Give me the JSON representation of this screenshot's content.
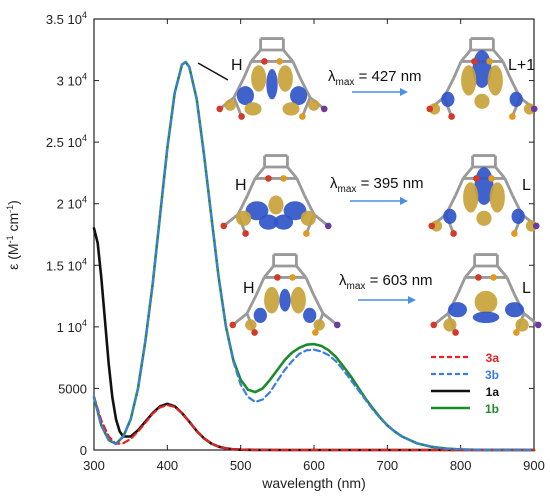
{
  "chart_data": {
    "type": "line",
    "xlabel": "wavelength (nm)",
    "ylabel_main": "ε (M",
    "ylabel_sup1": "-1",
    "ylabel_mid": " cm",
    "ylabel_sup2": "-1",
    "ylabel_end": ")",
    "xlim": [
      300,
      900
    ],
    "ylim": [
      0,
      35000
    ],
    "x_ticks": [
      {
        "value": 300,
        "label": "300"
      },
      {
        "value": 400,
        "label": "400"
      },
      {
        "value": 500,
        "label": "500"
      },
      {
        "value": 600,
        "label": "600"
      },
      {
        "value": 700,
        "label": "700"
      },
      {
        "value": 800,
        "label": "800"
      },
      {
        "value": 900,
        "label": "900"
      }
    ],
    "y_ticks": [
      {
        "value": 0,
        "base": "0",
        "exp": ""
      },
      {
        "value": 5000,
        "base": "5000",
        "exp": ""
      },
      {
        "value": 10000,
        "base": "1 10",
        "exp": "4"
      },
      {
        "value": 15000,
        "base": "1.5 10",
        "exp": "4"
      },
      {
        "value": 20000,
        "base": "2 10",
        "exp": "4"
      },
      {
        "value": 25000,
        "base": "2.5 10",
        "exp": "4"
      },
      {
        "value": 30000,
        "base": "3 10",
        "exp": "4"
      },
      {
        "value": 35000,
        "base": "3.5 10",
        "exp": "4"
      }
    ],
    "legend_position": "bottom-right",
    "series": [
      {
        "name": "3a",
        "color": "#e8201f",
        "dash": "dashed",
        "points": [
          [
            300,
            4300
          ],
          [
            310,
            2400
          ],
          [
            320,
            1100
          ],
          [
            330,
            500
          ],
          [
            340,
            550
          ],
          [
            350,
            900
          ],
          [
            360,
            1500
          ],
          [
            370,
            2200
          ],
          [
            380,
            2950
          ],
          [
            390,
            3450
          ],
          [
            400,
            3650
          ],
          [
            410,
            3500
          ],
          [
            420,
            3000
          ],
          [
            430,
            2300
          ],
          [
            440,
            1550
          ],
          [
            450,
            950
          ],
          [
            460,
            520
          ],
          [
            470,
            270
          ],
          [
            480,
            130
          ],
          [
            490,
            60
          ],
          [
            500,
            25
          ],
          [
            520,
            5
          ],
          [
            560,
            0
          ],
          [
            900,
            0
          ]
        ]
      },
      {
        "name": "3b",
        "color": "#3c7de0",
        "dash": "dashed",
        "points": [
          [
            300,
            4300
          ],
          [
            310,
            2000
          ],
          [
            320,
            800
          ],
          [
            330,
            500
          ],
          [
            340,
            1100
          ],
          [
            350,
            2500
          ],
          [
            360,
            5000
          ],
          [
            370,
            8800
          ],
          [
            380,
            13500
          ],
          [
            390,
            19000
          ],
          [
            400,
            24500
          ],
          [
            410,
            29000
          ],
          [
            420,
            31300
          ],
          [
            425,
            31500
          ],
          [
            430,
            31100
          ],
          [
            440,
            28500
          ],
          [
            450,
            24000
          ],
          [
            460,
            19000
          ],
          [
            470,
            14000
          ],
          [
            480,
            10000
          ],
          [
            490,
            7200
          ],
          [
            500,
            5300
          ],
          [
            510,
            4300
          ],
          [
            520,
            3900
          ],
          [
            530,
            4100
          ],
          [
            540,
            4700
          ],
          [
            550,
            5600
          ],
          [
            560,
            6500
          ],
          [
            570,
            7200
          ],
          [
            580,
            7800
          ],
          [
            590,
            8100
          ],
          [
            600,
            8150
          ],
          [
            610,
            8000
          ],
          [
            620,
            7700
          ],
          [
            630,
            7200
          ],
          [
            640,
            6500
          ],
          [
            650,
            5700
          ],
          [
            660,
            4900
          ],
          [
            670,
            4100
          ],
          [
            680,
            3300
          ],
          [
            690,
            2600
          ],
          [
            700,
            2000
          ],
          [
            710,
            1500
          ],
          [
            720,
            1100
          ],
          [
            740,
            550
          ],
          [
            760,
            260
          ],
          [
            780,
            110
          ],
          [
            800,
            50
          ],
          [
            820,
            20
          ],
          [
            850,
            5
          ],
          [
            900,
            0
          ]
        ]
      },
      {
        "name": "1a",
        "color": "#111111",
        "dash": "solid",
        "points": [
          [
            300,
            18000
          ],
          [
            305,
            16800
          ],
          [
            310,
            14000
          ],
          [
            315,
            10500
          ],
          [
            320,
            7000
          ],
          [
            325,
            4300
          ],
          [
            330,
            2500
          ],
          [
            335,
            1500
          ],
          [
            340,
            1100
          ],
          [
            350,
            1100
          ],
          [
            360,
            1600
          ],
          [
            370,
            2300
          ],
          [
            380,
            3000
          ],
          [
            390,
            3550
          ],
          [
            400,
            3750
          ],
          [
            410,
            3550
          ],
          [
            420,
            3000
          ],
          [
            430,
            2300
          ],
          [
            440,
            1550
          ],
          [
            450,
            950
          ],
          [
            460,
            520
          ],
          [
            470,
            270
          ],
          [
            480,
            130
          ],
          [
            490,
            60
          ],
          [
            500,
            25
          ],
          [
            520,
            5
          ],
          [
            560,
            0
          ],
          [
            900,
            0
          ]
        ]
      },
      {
        "name": "1b",
        "color": "#1e8a2c",
        "dash": "solid",
        "points": [
          [
            300,
            4300
          ],
          [
            310,
            2000
          ],
          [
            320,
            800
          ],
          [
            330,
            500
          ],
          [
            340,
            1100
          ],
          [
            350,
            2500
          ],
          [
            360,
            5000
          ],
          [
            370,
            8800
          ],
          [
            380,
            13500
          ],
          [
            390,
            19000
          ],
          [
            400,
            24500
          ],
          [
            410,
            29000
          ],
          [
            420,
            31300
          ],
          [
            425,
            31500
          ],
          [
            430,
            31100
          ],
          [
            440,
            28500
          ],
          [
            450,
            24000
          ],
          [
            460,
            19000
          ],
          [
            470,
            14000
          ],
          [
            480,
            10000
          ],
          [
            490,
            7300
          ],
          [
            500,
            5700
          ],
          [
            510,
            4900
          ],
          [
            520,
            4700
          ],
          [
            530,
            5000
          ],
          [
            540,
            5700
          ],
          [
            550,
            6500
          ],
          [
            560,
            7300
          ],
          [
            570,
            7900
          ],
          [
            580,
            8300
          ],
          [
            590,
            8550
          ],
          [
            600,
            8600
          ],
          [
            610,
            8450
          ],
          [
            620,
            8100
          ],
          [
            630,
            7550
          ],
          [
            640,
            6800
          ],
          [
            650,
            6000
          ],
          [
            660,
            5100
          ],
          [
            670,
            4200
          ],
          [
            680,
            3400
          ],
          [
            690,
            2650
          ],
          [
            700,
            2000
          ],
          [
            710,
            1500
          ],
          [
            720,
            1100
          ],
          [
            740,
            550
          ],
          [
            760,
            260
          ],
          [
            780,
            110
          ],
          [
            800,
            50
          ],
          [
            820,
            20
          ],
          [
            850,
            5
          ],
          [
            900,
            0
          ]
        ]
      }
    ]
  },
  "mo_panels": [
    {
      "from_label": "H",
      "lambda_prefix": "λ",
      "lambda_sub": "max",
      "lambda_value": " = 427 nm",
      "to_label": "L+1"
    },
    {
      "from_label": "H",
      "lambda_prefix": "λ",
      "lambda_sub": "max",
      "lambda_value": " = 395 nm",
      "to_label": "L"
    },
    {
      "from_label": "H",
      "lambda_prefix": "λ",
      "lambda_sub": "max",
      "lambda_value": " = 603 nm",
      "to_label": "L"
    }
  ],
  "colors": {
    "orbital_blue": "#2f55c8",
    "orbital_gold": "#c8a23a",
    "arrow_blue": "#4a8fe0"
  }
}
